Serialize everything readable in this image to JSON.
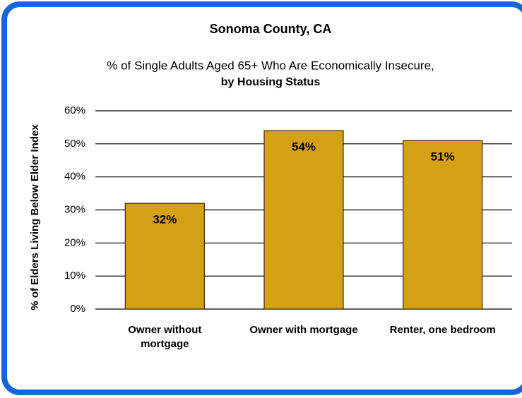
{
  "chart_data": {
    "type": "bar",
    "title": "Sonoma County, CA",
    "subtitle": [
      "% of Single Adults Aged 65+ Who Are Economically Insecure,",
      "by Housing Status"
    ],
    "y_label": "% of  Elders Living Below  Elder Index",
    "categories": [
      "Owner without mortgage",
      "Owner with mortgage",
      "Renter, one bedroom"
    ],
    "values": [
      32,
      54,
      51
    ],
    "value_labels": [
      "32%",
      "54%",
      "51%"
    ],
    "color": "#d4a114",
    "ylim": [
      0,
      60
    ],
    "yticks": [
      {
        "value": 0,
        "label": "0%"
      },
      {
        "value": 10,
        "label": "10%"
      },
      {
        "value": 20,
        "label": "20%"
      },
      {
        "value": 30,
        "label": "30%"
      },
      {
        "value": 40,
        "label": "40%"
      },
      {
        "value": 50,
        "label": "50%"
      },
      {
        "value": 60,
        "label": "60%"
      }
    ],
    "grid": true
  }
}
